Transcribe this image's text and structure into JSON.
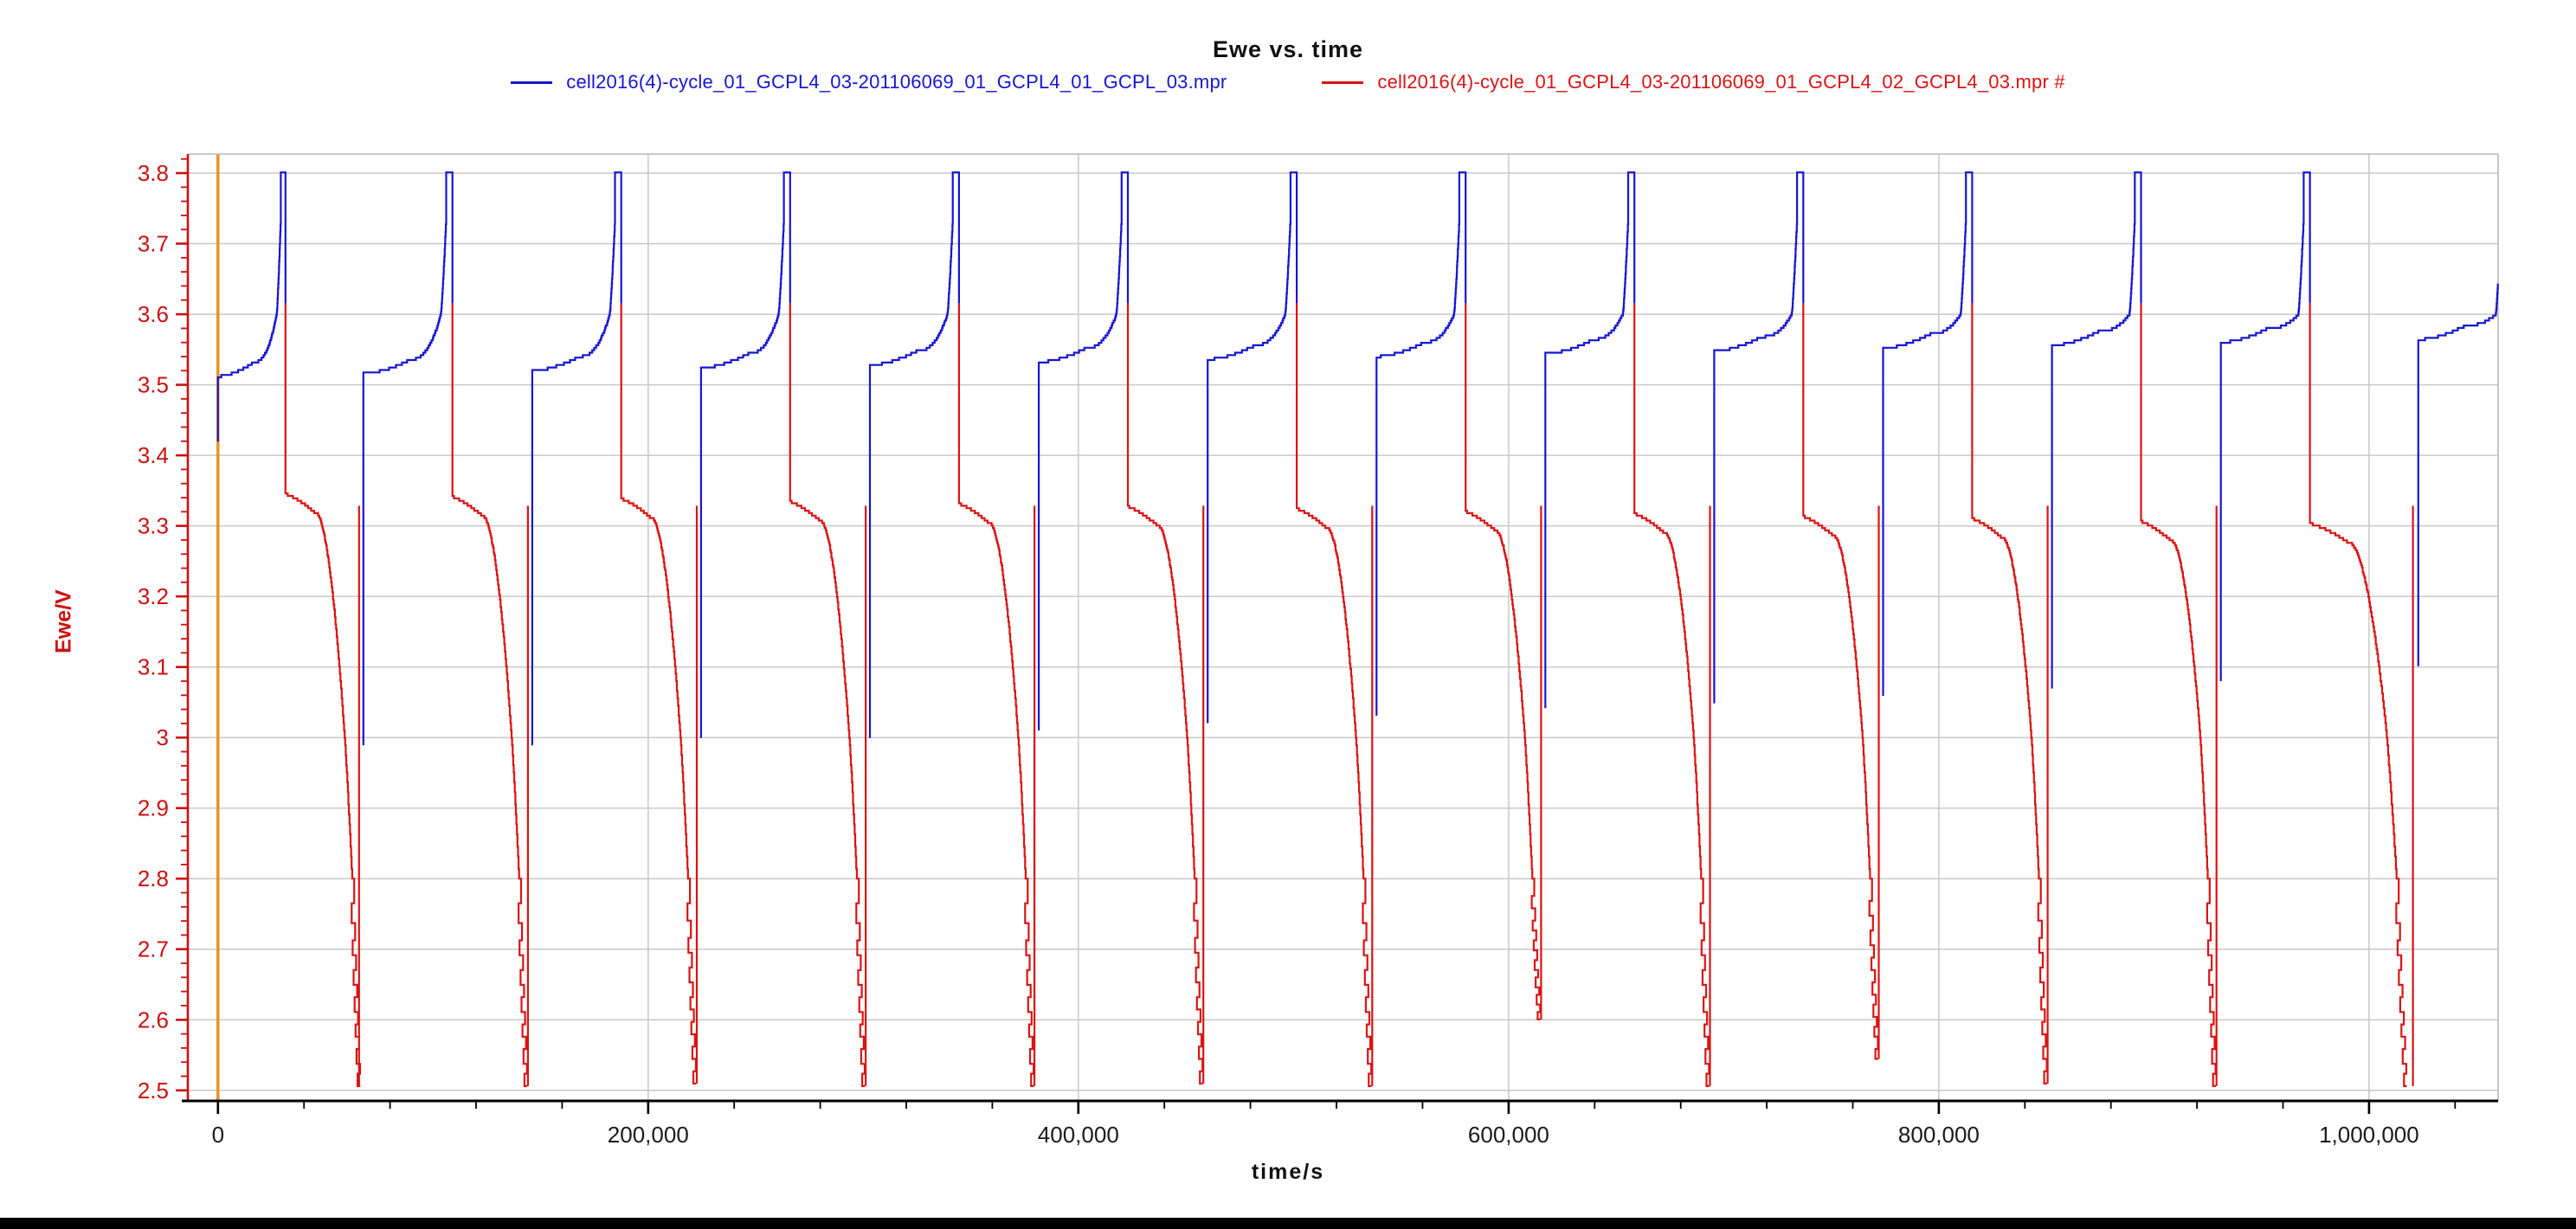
{
  "header": {
    "title": "Ewe vs. time"
  },
  "legend": [
    {
      "label": "cell2016(4)-cycle_01_GCPL4_03-201106069_01_GCPL4_01_GCPL_03.mpr",
      "color": "#1616d1"
    },
    {
      "label": "cell2016(4)-cycle_01_GCPL4_03-201106069_01_GCPL4_02_GCPL4_03.mpr #",
      "color": "#d91414"
    }
  ],
  "chart_data": {
    "type": "line",
    "title": "Ewe vs. time",
    "xlabel": "time/s",
    "ylabel": "Ewe/V",
    "xlim": [
      -14000,
      1060000
    ],
    "ylim": [
      2.485,
      3.827
    ],
    "grid": true,
    "grid_color": "#c8c8c8",
    "frame_color": "#b8b8b8",
    "x_axis_color": "#000000",
    "y_axis_color": "#cc1111",
    "x_tick_label_color": "#1a1a1a",
    "y_tick_label_color": "#cc1111",
    "zero_marker": {
      "x": 0,
      "color": "#f09020"
    },
    "x_major_ticks": [
      0,
      200000,
      400000,
      600000,
      800000,
      1000000
    ],
    "x_major_labels": [
      "0",
      "200,000",
      "400,000",
      "600,000",
      "800,000",
      "1,000,000"
    ],
    "x_minor_step": 40000,
    "y_major_ticks": [
      2.5,
      2.6,
      2.7,
      2.8,
      2.9,
      3.0,
      3.1,
      3.2,
      3.3,
      3.4,
      3.5,
      3.6,
      3.7,
      3.8
    ],
    "y_major_labels": [
      "2.5",
      "2.6",
      "2.7",
      "2.8",
      "2.9",
      "3",
      "3.1",
      "3.2",
      "3.3",
      "3.4",
      "3.5",
      "3.6",
      "3.7",
      "3.8"
    ],
    "y_minor_step": 0.02,
    "series": [
      {
        "name": "cell2016(4)-cycle_01_GCPL4_03-201106069_01_GCPL4_01_GCPL_03.mpr",
        "color": "#1616d1",
        "role": "charge",
        "params": {
          "v_top": 3.802,
          "v_release": 3.615,
          "t_edge": 1059900
        },
        "cycles": [
          {
            "t0": 0,
            "v_low": 3.42,
            "v_plateau": 3.512,
            "charge_s": 31400,
            "partial": false
          },
          {
            "t0": 67600,
            "v_low": 2.99,
            "v_plateau": 3.516,
            "charge_s": 41400,
            "partial": false
          },
          {
            "t0": 146100,
            "v_low": 2.99,
            "v_plateau": 3.52,
            "charge_s": 41400,
            "partial": false
          },
          {
            "t0": 224600,
            "v_low": 3.0,
            "v_plateau": 3.524,
            "charge_s": 41400,
            "partial": false
          },
          {
            "t0": 303100,
            "v_low": 3.0,
            "v_plateau": 3.528,
            "charge_s": 41400,
            "partial": false
          },
          {
            "t0": 381600,
            "v_low": 3.01,
            "v_plateau": 3.532,
            "charge_s": 41400,
            "partial": false
          },
          {
            "t0": 460100,
            "v_low": 3.02,
            "v_plateau": 3.536,
            "charge_s": 41400,
            "partial": false
          },
          {
            "t0": 538600,
            "v_low": 3.03,
            "v_plateau": 3.54,
            "charge_s": 41400,
            "partial": false
          },
          {
            "t0": 617100,
            "v_low": 3.04,
            "v_plateau": 3.544,
            "charge_s": 41400,
            "partial": false
          },
          {
            "t0": 695600,
            "v_low": 3.05,
            "v_plateau": 3.548,
            "charge_s": 41400,
            "partial": false
          },
          {
            "t0": 774100,
            "v_low": 3.06,
            "v_plateau": 3.552,
            "charge_s": 41400,
            "partial": false
          },
          {
            "t0": 852600,
            "v_low": 3.07,
            "v_plateau": 3.556,
            "charge_s": 41400,
            "partial": false
          },
          {
            "t0": 931100,
            "v_low": 3.08,
            "v_plateau": 3.56,
            "charge_s": 41400,
            "partial": false
          },
          {
            "t0": 1022900,
            "v_low": 3.1,
            "v_plateau": 3.564,
            "charge_s": 41400,
            "partial": true
          }
        ]
      },
      {
        "name": "cell2016(4)-cycle_01_GCPL4_03-201106069_01_GCPL4_02_GCPL4_03.mpr #",
        "color": "#d91414",
        "role": "discharge",
        "params": {
          "v_start": 3.615,
          "spike_top": 3.33
        },
        "cycles": [
          {
            "t_start": 31400,
            "v_init": 3.345,
            "v_min": 2.505,
            "spike_t": 65600,
            "dur_scale": 1.0
          },
          {
            "t_start": 109000,
            "v_init": 3.341,
            "v_min": 2.505,
            "spike_t": 144100,
            "dur_scale": 1.0
          },
          {
            "t_start": 187500,
            "v_init": 3.338,
            "v_min": 2.51,
            "spike_t": 222600,
            "dur_scale": 1.0
          },
          {
            "t_start": 266000,
            "v_init": 3.334,
            "v_min": 2.505,
            "spike_t": 301100,
            "dur_scale": 1.0
          },
          {
            "t_start": 344500,
            "v_init": 3.331,
            "v_min": 2.505,
            "spike_t": 379600,
            "dur_scale": 1.0
          },
          {
            "t_start": 423000,
            "v_init": 3.327,
            "v_min": 2.51,
            "spike_t": 458100,
            "dur_scale": 1.0
          },
          {
            "t_start": 501500,
            "v_init": 3.324,
            "v_min": 2.505,
            "spike_t": 536600,
            "dur_scale": 1.0
          },
          {
            "t_start": 580000,
            "v_init": 3.32,
            "v_min": 2.6,
            "spike_t": 615100,
            "dur_scale": 1.0
          },
          {
            "t_start": 658500,
            "v_init": 3.317,
            "v_min": 2.505,
            "spike_t": 693600,
            "dur_scale": 1.0
          },
          {
            "t_start": 737000,
            "v_init": 3.313,
            "v_min": 2.545,
            "spike_t": 772100,
            "dur_scale": 1.0
          },
          {
            "t_start": 815500,
            "v_init": 3.31,
            "v_min": 2.51,
            "spike_t": 850600,
            "dur_scale": 1.0
          },
          {
            "t_start": 894000,
            "v_init": 3.306,
            "v_min": 2.505,
            "spike_t": 929100,
            "dur_scale": 1.0
          },
          {
            "t_start": 972500,
            "v_init": 3.303,
            "v_min": 2.505,
            "spike_t": 1020400,
            "dur_scale": 1.3
          }
        ]
      }
    ]
  }
}
